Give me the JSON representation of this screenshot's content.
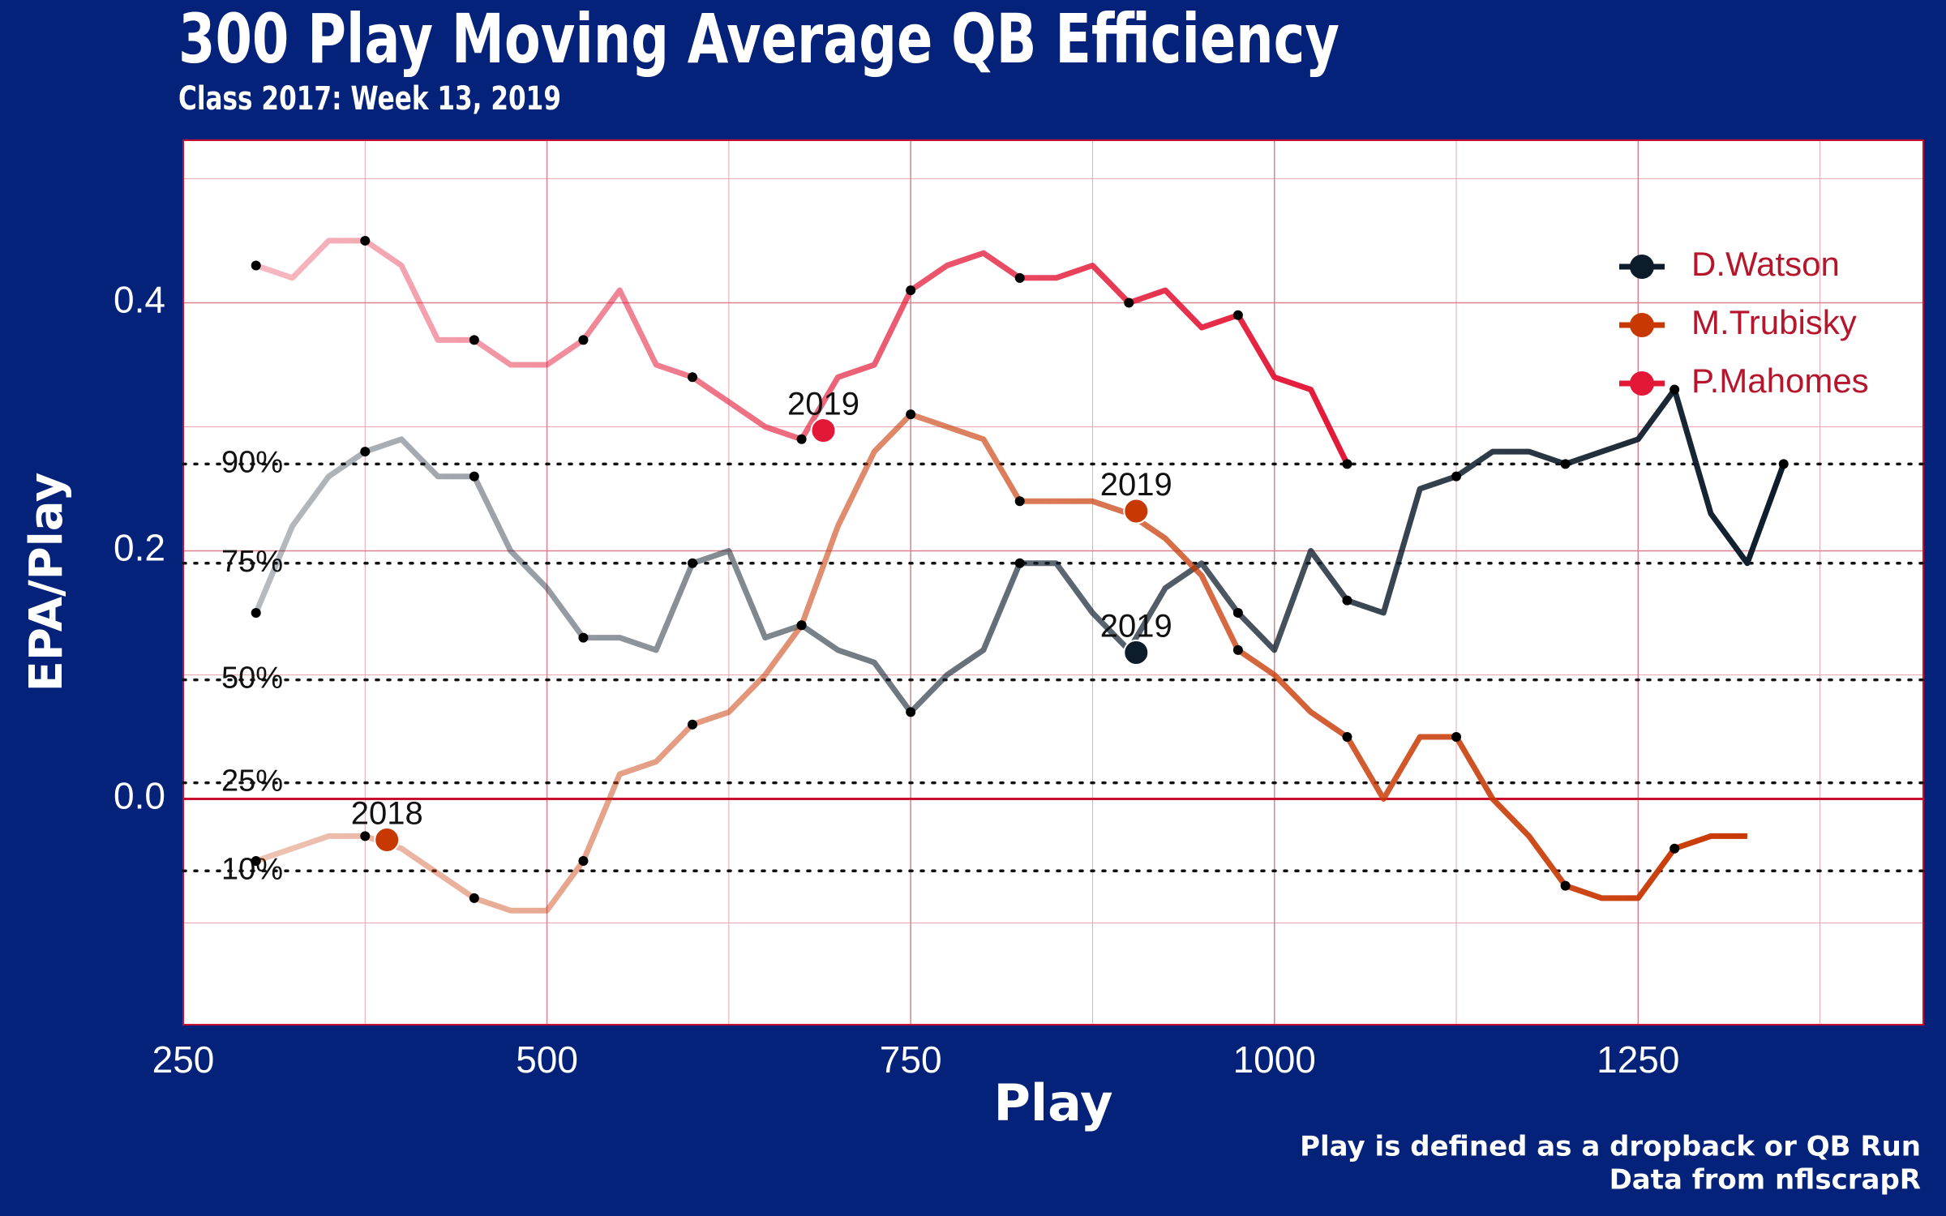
{
  "chart_data": {
    "type": "line",
    "title": "300 Play Moving Average QB Efficiency",
    "subtitle": "Class 2017: Week 13, 2019",
    "x_label": "Play",
    "y_label": "EPA/Play",
    "caption": [
      "Play is defined as a dropback or QB Run",
      "Data from nflscrapR"
    ],
    "x": [
      300,
      325,
      350,
      375,
      400,
      425,
      450,
      475,
      500,
      525,
      550,
      575,
      600,
      625,
      650,
      675,
      700,
      725,
      750,
      775,
      800,
      825,
      850,
      875,
      900,
      925,
      950,
      975,
      1000,
      1025,
      1050,
      1075,
      1100,
      1125,
      1150,
      1175,
      1200,
      1225,
      1250,
      1275,
      1300,
      1325,
      1350
    ],
    "series": [
      {
        "name": "D.Watson",
        "color": "#0d1c2b",
        "values": [
          0.15,
          0.22,
          0.26,
          0.28,
          0.29,
          0.26,
          0.26,
          0.2,
          0.17,
          0.13,
          0.13,
          0.12,
          0.19,
          0.2,
          0.13,
          0.14,
          0.12,
          0.11,
          0.07,
          0.1,
          0.12,
          0.19,
          0.19,
          0.15,
          0.12,
          0.17,
          0.19,
          0.15,
          0.12,
          0.2,
          0.16,
          0.15,
          0.25,
          0.26,
          0.28,
          0.28,
          0.27,
          0.28,
          0.29,
          0.33,
          0.23,
          0.19,
          0.27
        ]
      },
      {
        "name": "M.Trubisky",
        "color": "#c83803",
        "values": [
          -0.05,
          -0.04,
          -0.03,
          -0.03,
          -0.04,
          -0.06,
          -0.08,
          -0.09,
          -0.09,
          -0.05,
          0.02,
          0.03,
          0.06,
          0.07,
          0.1,
          0.14,
          0.22,
          0.28,
          0.31,
          0.3,
          0.29,
          0.24,
          0.24,
          0.24,
          0.23,
          0.21,
          0.18,
          0.12,
          0.1,
          0.07,
          0.05,
          0.0,
          0.05,
          0.05,
          0.0,
          -0.03,
          -0.07,
          -0.08,
          -0.08,
          -0.04,
          -0.03,
          -0.03,
          null
        ]
      },
      {
        "name": "P.Mahomes",
        "color": "#e31837",
        "values": [
          0.43,
          0.42,
          0.45,
          0.45,
          0.43,
          0.37,
          0.37,
          0.35,
          0.35,
          0.37,
          0.41,
          0.35,
          0.34,
          0.32,
          0.3,
          0.29,
          0.34,
          0.35,
          0.41,
          0.43,
          0.44,
          0.42,
          0.42,
          0.43,
          0.4,
          0.41,
          0.38,
          0.39,
          0.34,
          0.33,
          0.27,
          null,
          null,
          null,
          null,
          null,
          null,
          null,
          null,
          null,
          null,
          null,
          null
        ]
      }
    ],
    "annotations": [
      {
        "text": "2018",
        "x": 390,
        "y": -0.033,
        "color": "#c83803"
      },
      {
        "text": "2019",
        "x": 690,
        "y": 0.297,
        "color": "#e31837"
      },
      {
        "text": "2019",
        "x": 905,
        "y": 0.232,
        "color": "#c83803"
      },
      {
        "text": "2019",
        "x": 905,
        "y": 0.118,
        "color": "#0d1c2b"
      }
    ],
    "reference_lines": [
      {
        "value": 0.27,
        "label": "90%"
      },
      {
        "value": 0.19,
        "label": "75%"
      },
      {
        "value": 0.096,
        "label": "50%"
      },
      {
        "value": 0.013,
        "label": "25%"
      },
      {
        "value": -0.058,
        "label": "10%"
      }
    ],
    "xlim": [
      250,
      1446
    ],
    "ylim": [
      -0.182,
      0.531
    ],
    "xticks": [
      250,
      500,
      750,
      1000,
      1250
    ],
    "yticks": [
      {
        "value": 0,
        "label": "0.0"
      },
      {
        "value": 0.2,
        "label": "0.2"
      },
      {
        "value": 0.4,
        "label": "0.4"
      }
    ],
    "minor_xticks": [
      375,
      625,
      875,
      1125,
      1375
    ],
    "minor_yticks": [
      -0.1,
      0.1,
      0.3,
      0.5
    ],
    "grid": true,
    "legend_position": "top-right"
  }
}
